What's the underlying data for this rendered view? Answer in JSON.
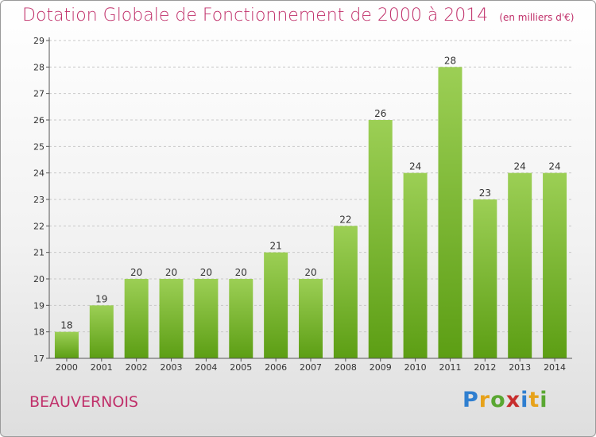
{
  "header": {
    "title": "Dotation Globale de Fonctionnement de 2000 à 2014",
    "unit": "(en milliers d'€)"
  },
  "footer": {
    "place": "BEAUVERNOIS",
    "logo_letters": [
      "P",
      "r",
      "o",
      "x",
      "i",
      "t",
      "i"
    ],
    "logo_colors": [
      "#2f7fd0",
      "#e7a21a",
      "#5aa732",
      "#c72d2d",
      "#2f7fd0",
      "#e7a21a",
      "#5aa732"
    ]
  },
  "colors": {
    "bar_top": "#9ccf55",
    "bar_bottom": "#5c9e14",
    "grid": "#c8c8c8",
    "title": "#c0306a"
  },
  "chart_data": {
    "type": "bar",
    "title": "Dotation Globale de Fonctionnement de 2000 à 2014",
    "subtitle": "(en milliers d'€)",
    "xlabel": "",
    "ylabel": "",
    "categories": [
      "2000",
      "2001",
      "2002",
      "2003",
      "2004",
      "2005",
      "2006",
      "2007",
      "2008",
      "2009",
      "2010",
      "2011",
      "2012",
      "2013",
      "2014"
    ],
    "values": [
      18,
      19,
      20,
      20,
      20,
      20,
      21,
      20,
      22,
      26,
      24,
      28,
      23,
      24,
      24
    ],
    "ylim": [
      17,
      29
    ],
    "yticks": [
      17,
      18,
      19,
      20,
      21,
      22,
      23,
      24,
      25,
      26,
      27,
      28,
      29
    ],
    "grid": true,
    "data_labels": true
  }
}
